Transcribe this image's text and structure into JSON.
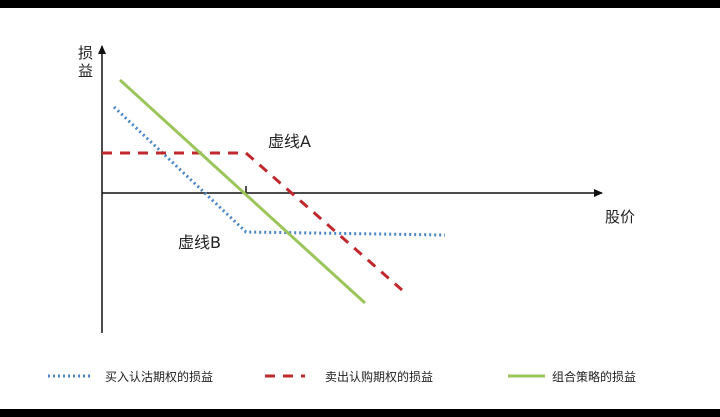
{
  "axes": {
    "y_label": "损益",
    "x_label": "股价"
  },
  "annotations": [
    "虚线A",
    "虚线B"
  ],
  "legend": [
    "买入认沽期权的损益",
    "卖出认购期权的损益",
    "组合策略的损益"
  ]
}
